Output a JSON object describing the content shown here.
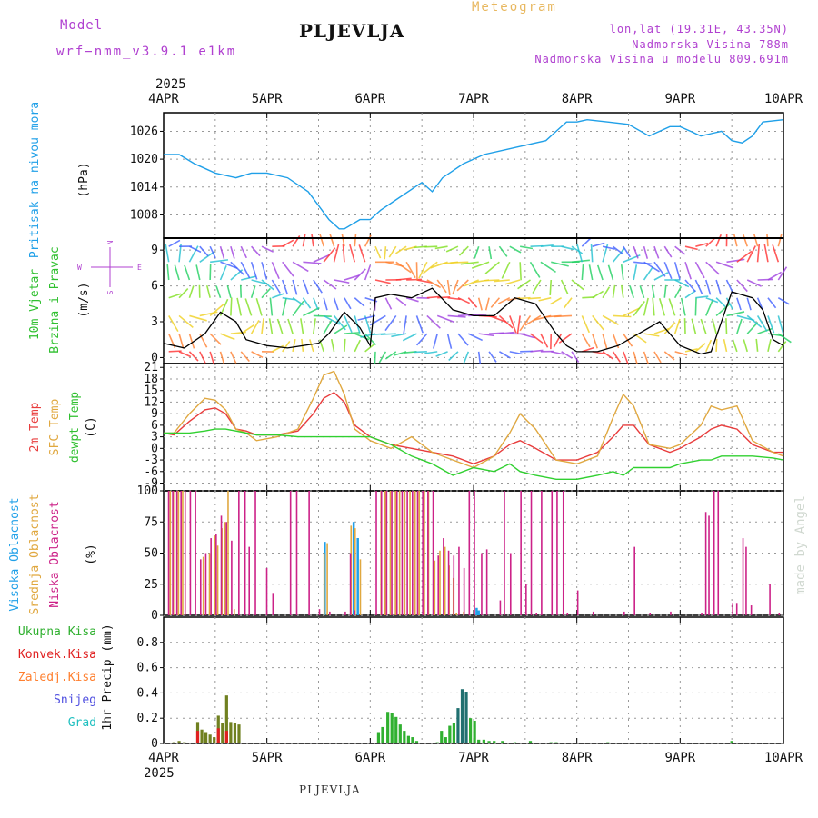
{
  "header": {
    "model_label": "Model",
    "model_name": "wrf−nmm_v3.9.1 e1km",
    "station": "PLJEVLJA",
    "product": "Meteogram",
    "lonlat": "lon,lat (19.31E, 43.35N)",
    "elevation": "Nadmorska Visina 788m",
    "model_elevation": "Nadmorska Visina u modelu 809.691m"
  },
  "footer": {
    "station": "PLJEVLJA"
  },
  "watermark": "made by Angel",
  "time_axis": {
    "year": "2025",
    "labels": [
      "4APR",
      "5APR",
      "6APR",
      "7APR",
      "8APR",
      "9APR",
      "10APR"
    ]
  },
  "colors": {
    "pressure": "#20a0e8",
    "wind_speed": "#000000",
    "gust": "#ff2020",
    "temp2m": "#e83c3c",
    "sfc_temp": "#e0a840",
    "dewpt": "#30d030",
    "high_cloud": "#20a0e8",
    "mid_cloud": "#e0a840",
    "low_cloud": "#cc2288",
    "total_precip": "#30b030",
    "conv_precip": "#e02020",
    "frozen": "#ff8030",
    "snow": "#5050e0",
    "graupel": "#20c0c0"
  },
  "panel_labels": {
    "pressure": {
      "l1": "Pritisak na nivou mora",
      "l2": "(hPa)"
    },
    "wind": {
      "l1": "10m Vjetar",
      "l2": "Brzina i Pravac",
      "l3": "(m/s)"
    },
    "compass": {
      "n": "N",
      "w": "W",
      "e": "E",
      "s": "S"
    },
    "temp": {
      "l1": "2m Temp",
      "l2": "SFC Temp",
      "l3": "dewpt Temp",
      "l4": "(C)"
    },
    "cloud": {
      "l1": "Visoka Oblacnost",
      "l2": "Srednja Oblacnost",
      "l3": "Niska Oblacnost",
      "l4": "(%)"
    },
    "precip": {
      "l1": "Ukupna Kisa",
      "l2": "Konvek.Kisa",
      "l3": "Zaledj.Kisa",
      "l4": "Snijeg",
      "l5": "Grad",
      "l6": "1hr Precip (mm)"
    }
  },
  "chart_data": [
    {
      "type": "line",
      "name": "pressure",
      "ylabel": "(hPa)",
      "ylim": [
        1003,
        1030
      ],
      "yticks": [
        1008,
        1014,
        1020,
        1026
      ],
      "x": [
        0,
        0.15,
        0.3,
        0.5,
        0.7,
        0.85,
        1.0,
        1.2,
        1.4,
        1.5,
        1.6,
        1.7,
        1.75,
        1.9,
        2.0,
        2.1,
        2.3,
        2.5,
        2.6,
        2.7,
        2.9,
        3.1,
        3.3,
        3.5,
        3.7,
        3.8,
        3.9,
        4.0,
        4.1,
        4.3,
        4.5,
        4.7,
        4.9,
        5.0,
        5.1,
        5.2,
        5.3,
        5.4,
        5.5,
        5.6,
        5.7,
        5.8,
        6.0
      ],
      "values": [
        1021,
        1021,
        1019,
        1017,
        1016,
        1017,
        1017,
        1016,
        1013,
        1010,
        1007,
        1005,
        1005,
        1007,
        1007,
        1009,
        1012,
        1015,
        1013,
        1016,
        1019,
        1021,
        1022,
        1023,
        1024,
        1026,
        1028,
        1028,
        1028.5,
        1028,
        1027.5,
        1025,
        1027,
        1027,
        1026,
        1025,
        1025.5,
        1026,
        1024,
        1023.5,
        1025,
        1028,
        1028.5
      ]
    },
    {
      "type": "line",
      "name": "wind_speed",
      "ylabel": "(m/s)",
      "ylim": [
        -0.5,
        10
      ],
      "yticks": [
        0,
        3,
        6,
        9
      ],
      "x": [
        0,
        0.2,
        0.4,
        0.55,
        0.7,
        0.8,
        1.0,
        1.2,
        1.5,
        1.6,
        1.75,
        1.9,
        2.0,
        2.05,
        2.2,
        2.4,
        2.6,
        2.8,
        3.0,
        3.2,
        3.4,
        3.6,
        3.8,
        3.9,
        4.0,
        4.2,
        4.4,
        4.6,
        4.8,
        5.0,
        5.2,
        5.3,
        5.5,
        5.7,
        5.8,
        5.9,
        6.0
      ],
      "values": [
        1.2,
        0.8,
        2.0,
        3.8,
        3.0,
        1.5,
        1.0,
        0.8,
        1.2,
        2.0,
        3.8,
        2.5,
        1.0,
        5.0,
        5.3,
        5.0,
        5.8,
        4.0,
        3.5,
        3.5,
        5.0,
        4.5,
        2.0,
        1.0,
        0.5,
        0.5,
        1.0,
        2.0,
        3.0,
        1.0,
        0.3,
        0.5,
        5.5,
        5.0,
        4.0,
        1.5,
        1.0
      ]
    },
    {
      "type": "line",
      "name": "temperature",
      "ylabel": "(C)",
      "ylim": [
        -11,
        22
      ],
      "yticks": [
        -9,
        -6,
        -3,
        0,
        3,
        6,
        9,
        12,
        15,
        18,
        21
      ],
      "x": [
        0,
        0.1,
        0.25,
        0.4,
        0.5,
        0.6,
        0.7,
        0.8,
        0.9,
        1.1,
        1.3,
        1.45,
        1.55,
        1.65,
        1.75,
        1.85,
        2.0,
        2.2,
        2.4,
        2.6,
        2.8,
        3.0,
        3.2,
        3.35,
        3.45,
        3.6,
        3.8,
        4.0,
        4.2,
        4.35,
        4.45,
        4.55,
        4.7,
        4.9,
        5.0,
        5.2,
        5.3,
        5.4,
        5.55,
        5.7,
        5.9,
        6.0
      ],
      "series": [
        {
          "name": "2m Temp",
          "values": [
            4,
            3.5,
            7,
            10,
            10.5,
            9,
            5,
            4.5,
            3.5,
            3.5,
            4.5,
            9,
            13,
            14.5,
            12,
            6,
            3,
            1,
            0,
            -1,
            -2,
            -4,
            -2,
            1,
            2,
            0,
            -3,
            -3,
            -1,
            3,
            6,
            6,
            1,
            -1,
            0,
            3,
            5,
            6,
            5,
            1,
            -1,
            -1
          ]
        },
        {
          "name": "SFC Temp",
          "values": [
            4,
            4,
            9,
            13,
            12.5,
            10,
            5,
            4,
            2,
            3,
            5,
            13,
            19,
            20,
            14,
            5,
            2,
            0,
            3,
            -1,
            -3,
            -5,
            -2,
            4,
            9,
            5,
            -3,
            -4,
            -2,
            8,
            14,
            11,
            1,
            0,
            1,
            6,
            11,
            10,
            11,
            2,
            -1,
            -2
          ]
        },
        {
          "name": "dewpt Temp",
          "values": [
            4,
            4,
            4,
            4.5,
            5,
            5,
            4.5,
            4,
            3.5,
            3.5,
            3,
            3,
            3,
            3,
            3,
            3,
            3,
            1,
            -2,
            -4,
            -7,
            -5,
            -6,
            -4,
            -6,
            -7,
            -8,
            -8,
            -7,
            -6,
            -7,
            -5,
            -5,
            -5,
            -4,
            -3,
            -3,
            -2,
            -2,
            -2,
            -2.5,
            -3
          ]
        }
      ]
    },
    {
      "type": "bar",
      "name": "cloud",
      "ylabel": "(%)",
      "ylim": [
        0,
        100
      ],
      "yticks": [
        0,
        25,
        50,
        75,
        100
      ],
      "series": [
        {
          "name": "Visoka Oblacnost",
          "bars": [
            [
              1.56,
              59
            ],
            [
              1.84,
              75
            ],
            [
              1.88,
              62
            ],
            [
              3.03,
              6
            ],
            [
              3.05,
              4
            ]
          ]
        },
        {
          "name": "Srednja Oblacnost",
          "bars": [
            [
              0.06,
              100
            ],
            [
              0.09,
              100
            ],
            [
              0.14,
              100
            ],
            [
              0.18,
              100
            ],
            [
              0.38,
              47
            ],
            [
              0.44,
              50
            ],
            [
              0.49,
              64
            ],
            [
              0.52,
              56
            ],
            [
              0.56,
              70
            ],
            [
              0.59,
              75
            ],
            [
              0.62,
              100
            ],
            [
              0.68,
              5
            ],
            [
              1.55,
              50
            ],
            [
              1.58,
              58
            ],
            [
              1.81,
              72
            ],
            [
              1.85,
              70
            ],
            [
              1.9,
              45
            ],
            [
              2.1,
              100
            ],
            [
              2.14,
              100
            ],
            [
              2.19,
              100
            ],
            [
              2.24,
              100
            ],
            [
              2.28,
              100
            ],
            [
              2.33,
              100
            ],
            [
              2.38,
              100
            ],
            [
              2.43,
              100
            ],
            [
              2.47,
              100
            ],
            [
              2.52,
              100
            ],
            [
              2.56,
              100
            ],
            [
              2.62,
              44
            ],
            [
              2.67,
              52
            ],
            [
              2.72,
              55
            ],
            [
              2.76,
              40
            ],
            [
              2.8,
              30
            ],
            [
              2.83,
              2
            ],
            [
              2.9,
              3
            ]
          ]
        },
        {
          "name": "Niska Oblacnost",
          "bars": [
            [
              0.04,
              100
            ],
            [
              0.08,
              100
            ],
            [
              0.12,
              100
            ],
            [
              0.16,
              100
            ],
            [
              0.2,
              100
            ],
            [
              0.25,
              100
            ],
            [
              0.3,
              100
            ],
            [
              0.35,
              45
            ],
            [
              0.4,
              50
            ],
            [
              0.45,
              62
            ],
            [
              0.5,
              65
            ],
            [
              0.55,
              80
            ],
            [
              0.6,
              75
            ],
            [
              0.65,
              60
            ],
            [
              0.72,
              100
            ],
            [
              0.78,
              100
            ],
            [
              0.82,
              55
            ],
            [
              0.88,
              100
            ],
            [
              0.99,
              38
            ],
            [
              1.05,
              18
            ],
            [
              1.22,
              100
            ],
            [
              1.28,
              100
            ],
            [
              1.4,
              100
            ],
            [
              1.5,
              5
            ],
            [
              1.6,
              3
            ],
            [
              1.75,
              3
            ],
            [
              1.8,
              50
            ],
            [
              1.84,
              4
            ],
            [
              2.05,
              100
            ],
            [
              2.1,
              100
            ],
            [
              2.15,
              100
            ],
            [
              2.2,
              100
            ],
            [
              2.25,
              100
            ],
            [
              2.3,
              100
            ],
            [
              2.35,
              100
            ],
            [
              2.4,
              100
            ],
            [
              2.45,
              100
            ],
            [
              2.5,
              100
            ],
            [
              2.55,
              100
            ],
            [
              2.6,
              100
            ],
            [
              2.65,
              48
            ],
            [
              2.7,
              62
            ],
            [
              2.75,
              52
            ],
            [
              2.8,
              48
            ],
            [
              2.85,
              55
            ],
            [
              2.9,
              38
            ],
            [
              2.95,
              100
            ],
            [
              3.0,
              100
            ],
            [
              3.07,
              50
            ],
            [
              3.12,
              53
            ],
            [
              3.25,
              12
            ],
            [
              3.29,
              100
            ],
            [
              3.35,
              50
            ],
            [
              3.45,
              100
            ],
            [
              3.5,
              25
            ],
            [
              3.55,
              100
            ],
            [
              3.6,
              2
            ],
            [
              3.65,
              100
            ],
            [
              3.75,
              100
            ],
            [
              3.8,
              100
            ],
            [
              3.86,
              100
            ],
            [
              3.9,
              2
            ],
            [
              4.0,
              20
            ],
            [
              4.15,
              3
            ],
            [
              4.45,
              3
            ],
            [
              4.55,
              55
            ],
            [
              4.7,
              2
            ],
            [
              4.9,
              3
            ],
            [
              5.2,
              2
            ],
            [
              5.24,
              83
            ],
            [
              5.27,
              80
            ],
            [
              5.32,
              100
            ],
            [
              5.36,
              100
            ],
            [
              5.5,
              10
            ],
            [
              5.54,
              10
            ],
            [
              5.6,
              62
            ],
            [
              5.63,
              55
            ],
            [
              5.68,
              8
            ],
            [
              5.86,
              25
            ],
            [
              5.95,
              2
            ]
          ]
        }
      ]
    },
    {
      "type": "bar",
      "name": "precip",
      "ylabel": "1hr Precip (mm)",
      "ylim": [
        0,
        1
      ],
      "yticks": [
        0,
        0.2,
        0.4,
        0.6,
        0.8
      ],
      "series": [
        {
          "name": "Ukupna Kisa",
          "bars": [
            [
              0.1,
              0.01
            ],
            [
              0.15,
              0.02
            ],
            [
              0.2,
              0.01
            ],
            [
              0.33,
              0.17
            ],
            [
              0.37,
              0.11
            ],
            [
              0.41,
              0.09
            ],
            [
              0.45,
              0.07
            ],
            [
              0.49,
              0.05
            ],
            [
              0.53,
              0.22
            ],
            [
              0.57,
              0.16
            ],
            [
              0.61,
              0.38
            ],
            [
              0.65,
              0.17
            ],
            [
              0.69,
              0.16
            ],
            [
              0.73,
              0.15
            ],
            [
              2.08,
              0.09
            ],
            [
              2.12,
              0.13
            ],
            [
              2.17,
              0.25
            ],
            [
              2.21,
              0.24
            ],
            [
              2.25,
              0.21
            ],
            [
              2.29,
              0.15
            ],
            [
              2.33,
              0.1
            ],
            [
              2.37,
              0.06
            ],
            [
              2.41,
              0.05
            ],
            [
              2.45,
              0.02
            ],
            [
              2.65,
              0.01
            ],
            [
              2.69,
              0.1
            ],
            [
              2.73,
              0.05
            ],
            [
              2.77,
              0.14
            ],
            [
              2.81,
              0.16
            ],
            [
              2.85,
              0.28
            ],
            [
              2.89,
              0.43
            ],
            [
              2.93,
              0.41
            ],
            [
              2.97,
              0.2
            ],
            [
              3.01,
              0.18
            ],
            [
              3.05,
              0.03
            ],
            [
              3.1,
              0.03
            ],
            [
              3.15,
              0.02
            ],
            [
              3.2,
              0.02
            ],
            [
              3.28,
              0.02
            ],
            [
              3.4,
              0.01
            ],
            [
              3.55,
              0.02
            ],
            [
              3.75,
              0.01
            ],
            [
              3.8,
              0.01
            ],
            [
              4.3,
              0.01
            ],
            [
              5.5,
              0.02
            ]
          ]
        },
        {
          "name": "Konvek.Kisa",
          "bars": [
            [
              0.33,
              0.1
            ],
            [
              0.53,
              0.12
            ],
            [
              0.61,
              0.1
            ]
          ]
        }
      ]
    }
  ]
}
